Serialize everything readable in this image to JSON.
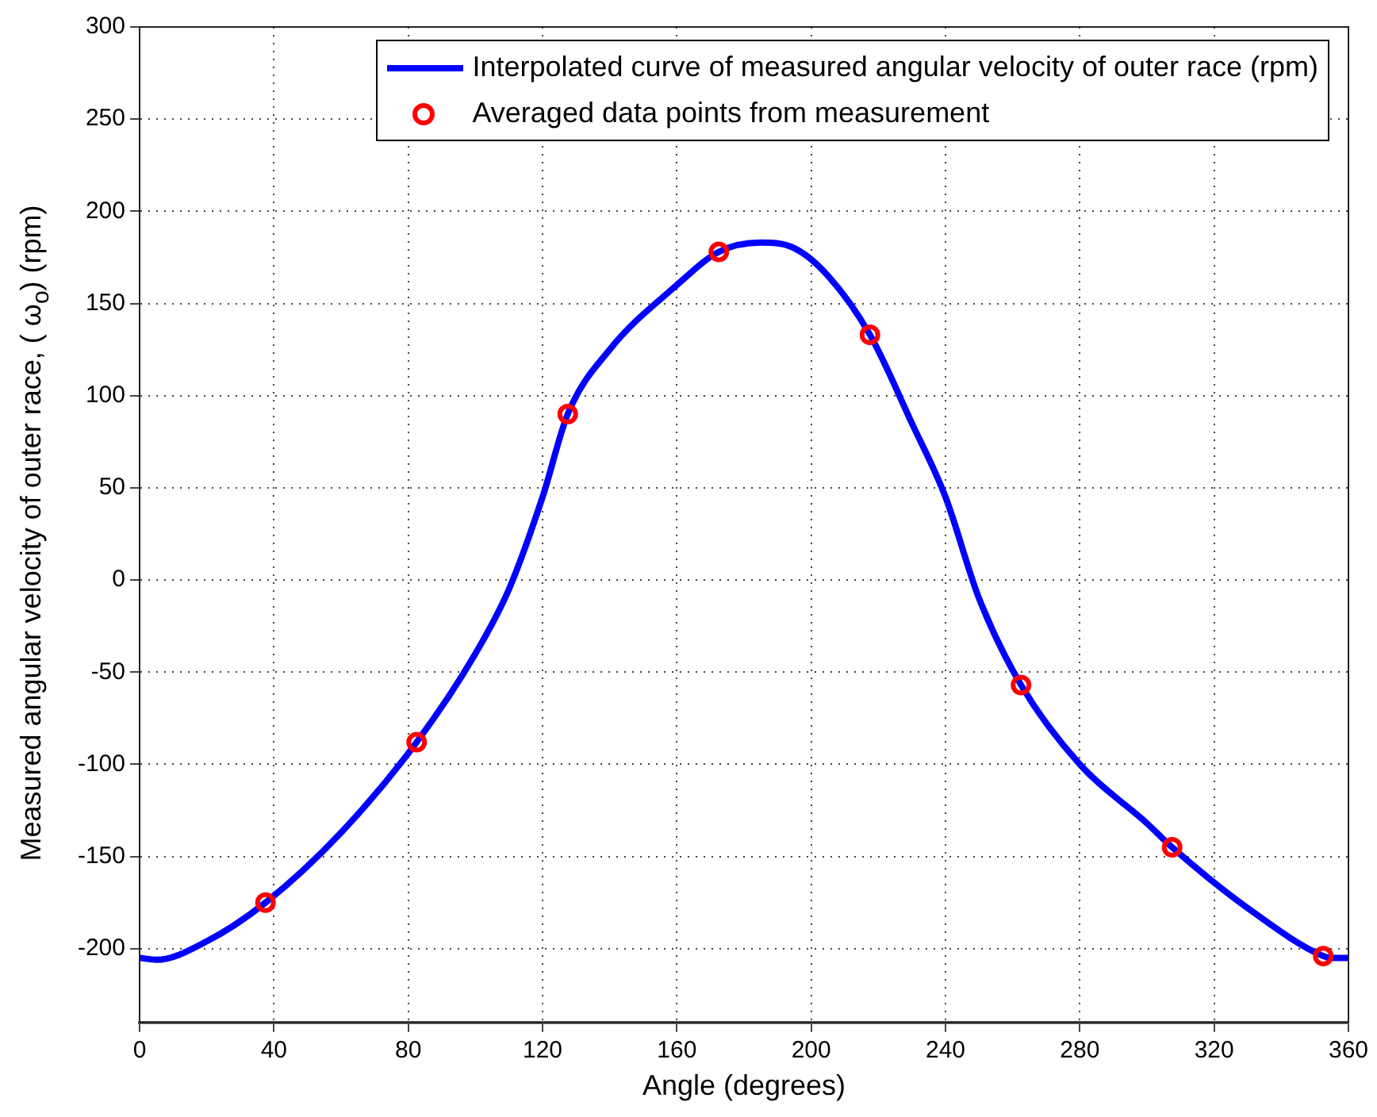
{
  "chart_data": {
    "type": "line",
    "xlabel": "Angle (degrees)",
    "ylabel": "Measured angular velocity of outer race, ( ω$_{o}$) (rpm)",
    "xlim": [
      0,
      360
    ],
    "xticks": [
      0,
      40,
      80,
      120,
      160,
      200,
      240,
      280,
      320,
      360
    ],
    "ylim": [
      -240,
      300
    ],
    "yticks": [
      -200,
      -150,
      -100,
      -50,
      0,
      50,
      100,
      150,
      200,
      250,
      300
    ],
    "grid": true,
    "legend": "top right",
    "series": [
      {
        "name": "Interpolated curve of measured angular velocity of outer race (rpm)",
        "color": "#0000ff",
        "marker": "none",
        "line_style": "solid",
        "x": [
          0,
          5,
          20,
          37.5,
          60,
          82.5,
          100,
          110,
          120,
          127.5,
          140,
          160,
          172.5,
          185,
          195,
          205,
          217.5,
          230,
          240,
          250,
          262.5,
          280,
          300,
          307.5,
          330,
          352.5,
          355,
          360
        ],
        "values": [
          -205,
          -206,
          -196,
          -175,
          -137,
          -88,
          -40,
          -5,
          45,
          90,
          125,
          160,
          178,
          183,
          180,
          165,
          133,
          85,
          45,
          -10,
          -57,
          -100,
          -132,
          -145,
          -178,
          -204,
          -205,
          -205
        ]
      },
      {
        "name": "Averaged data points from measurement",
        "type": "scatter",
        "color": "#ff0000",
        "marker": "circle",
        "x": [
          37.5,
          82.5,
          127.5,
          172.5,
          217.5,
          262.5,
          307.5,
          352.5
        ],
        "values": [
          -175,
          -88,
          90,
          178,
          133,
          -57,
          -145,
          -204
        ]
      }
    ]
  }
}
